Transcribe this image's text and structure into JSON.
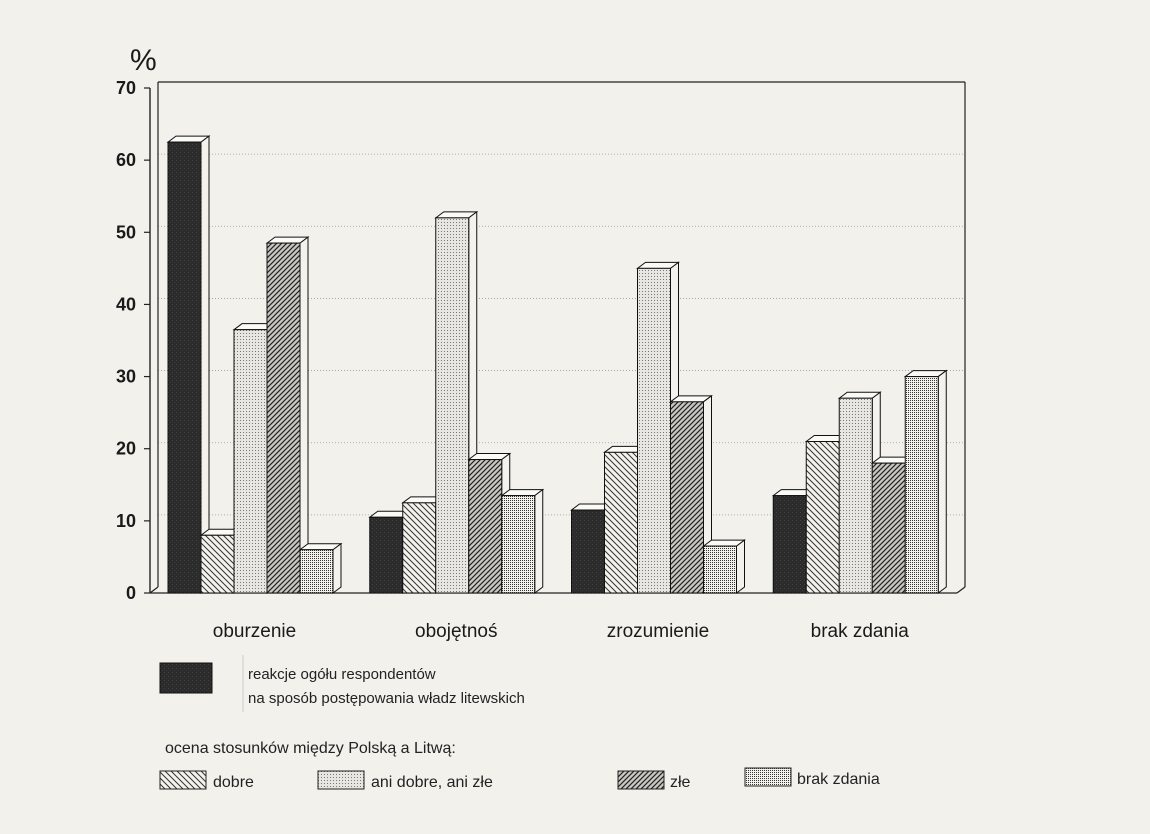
{
  "chart_data": {
    "type": "bar",
    "unit_label": "%",
    "ylim": [
      0,
      70
    ],
    "yticks": [
      0,
      10,
      20,
      30,
      40,
      50,
      60,
      70
    ],
    "grid": true,
    "categories": [
      "oburzenie",
      "obojętnoś",
      "zrozumienie",
      "brak zdania"
    ],
    "series": [
      {
        "name": "reakcje ogółu respondentów na sposób postępowania władz litewskich",
        "pattern": "solid-dark",
        "values": [
          62.5,
          10.5,
          11.5,
          13.5
        ]
      },
      {
        "name": "dobre",
        "pattern": "hatch-back",
        "values": [
          8,
          12.5,
          19.5,
          21
        ]
      },
      {
        "name": "ani dobre, ani złe",
        "pattern": "dots",
        "values": [
          36.5,
          52,
          45,
          27
        ]
      },
      {
        "name": "złe",
        "pattern": "hatch-forward",
        "values": [
          48.5,
          18.5,
          26.5,
          18
        ]
      },
      {
        "name": "brak zdania",
        "pattern": "grid",
        "values": [
          6,
          13.5,
          6.5,
          30
        ]
      }
    ],
    "legend": {
      "main_entry_lines": [
        "reakcje ogółu respondentów",
        "na sposób postępowania władz litewskich"
      ],
      "group_title": "ocena stosunków między Polską a Litwą:",
      "group_entries": [
        "dobre",
        "ani dobre, ani złe",
        "złe",
        "brak zdania"
      ],
      "placement": "bottom"
    }
  }
}
